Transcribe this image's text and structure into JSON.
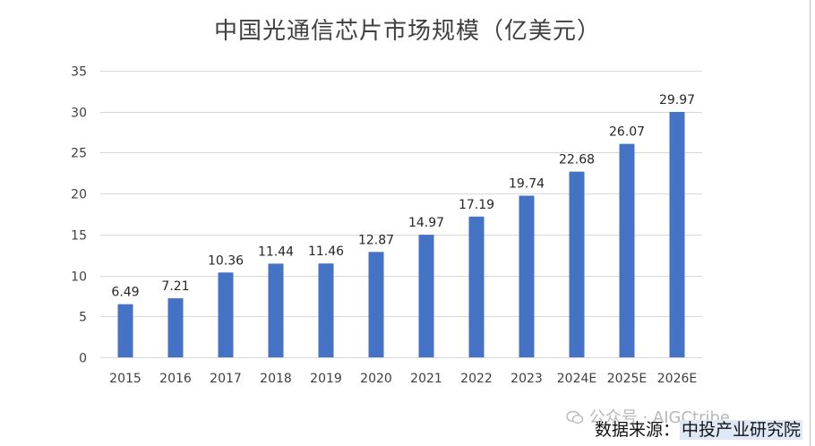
{
  "chart_data": {
    "type": "bar",
    "title": "中国光通信芯片市场规模（亿美元）",
    "categories": [
      "2015",
      "2016",
      "2017",
      "2018",
      "2019",
      "2020",
      "2021",
      "2022",
      "2023",
      "2024E",
      "2025E",
      "2026E"
    ],
    "values": [
      6.49,
      7.21,
      10.36,
      11.44,
      11.46,
      12.87,
      14.97,
      17.19,
      19.74,
      22.68,
      26.07,
      29.97
    ],
    "data_labels": [
      "6.49",
      "7.21",
      "10.36",
      "11.44",
      "11.46",
      "12.87",
      "14.97",
      "17.19",
      "19.74",
      "22.68",
      "26.07",
      "29.97"
    ],
    "yticks": [
      "0",
      "5",
      "10",
      "15",
      "20",
      "25",
      "30",
      "35"
    ],
    "ylim": [
      0,
      35
    ],
    "xlabel": "",
    "ylabel": "",
    "grid": true,
    "bar_color": "#4472c4"
  },
  "source": {
    "label": "数据来源：",
    "name": "中投产业研究院"
  },
  "watermark": {
    "text": "公众号 · AIGCtribe"
  }
}
